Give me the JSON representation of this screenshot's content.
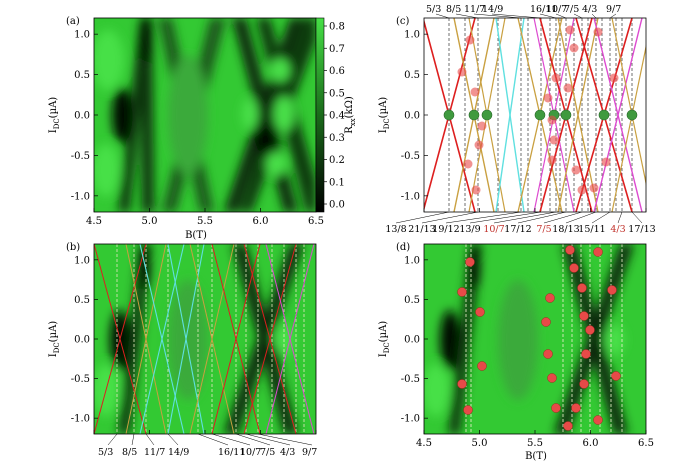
{
  "panels": {
    "a": {
      "label": "(a)"
    },
    "b": {
      "label": "(b)"
    },
    "c": {
      "label": "(c)"
    },
    "d": {
      "label": "(d)"
    }
  },
  "axes": {
    "idc_label": "I",
    "idc_sub": "DC",
    "idc_unit": "(µA)",
    "b_label": "B(T)",
    "rxx_label": "R",
    "rxx_sub": "xx",
    "rxx_unit": "(kΩ)"
  },
  "yticks": [
    "1.0",
    "0.5",
    "0.0",
    "-0.5",
    "-1.0"
  ],
  "xticks": [
    "4.5",
    "5.0",
    "5.5",
    "6.0",
    "6.5"
  ],
  "colorbar_ticks": [
    "0.8",
    "0.7",
    "0.6",
    "0.5",
    "0.4",
    "0.3",
    "0.2",
    "0.1",
    "0.0"
  ],
  "fractions_top_c": [
    "5/3",
    "8/5",
    "11/7",
    "14/9",
    "16/11",
    "10/7",
    "7/5",
    "4/3",
    "9/7"
  ],
  "fractions_bottom_c": [
    {
      "t": "13/8",
      "red": false
    },
    {
      "t": "21/13",
      "red": false
    },
    {
      "t": "19/12",
      "red": false
    },
    {
      "t": "13/9",
      "red": false
    },
    {
      "t": "10/7",
      "red": true
    },
    {
      "t": "17/12",
      "red": false
    },
    {
      "t": "7/5",
      "red": true
    },
    {
      "t": "18/13",
      "red": false
    },
    {
      "t": "15/11",
      "red": false
    },
    {
      "t": "4/3",
      "red": true
    },
    {
      "t": "17/13",
      "red": false
    }
  ],
  "fractions_bottom_b": [
    "5/3",
    "8/5",
    "11/7",
    "14/9",
    "16/11",
    "10/7",
    "7/5",
    "4/3",
    "9/7"
  ],
  "colors": {
    "green_bg": "#33c933",
    "dark": "#061806",
    "red_line": "#dd1f1f",
    "gold_line": "#c9a040",
    "cyan_line": "#5fe0e0",
    "magenta_line": "#dd4ad0",
    "marker_red": "#e74a48",
    "marker_green": "#3f9a3f"
  }
}
